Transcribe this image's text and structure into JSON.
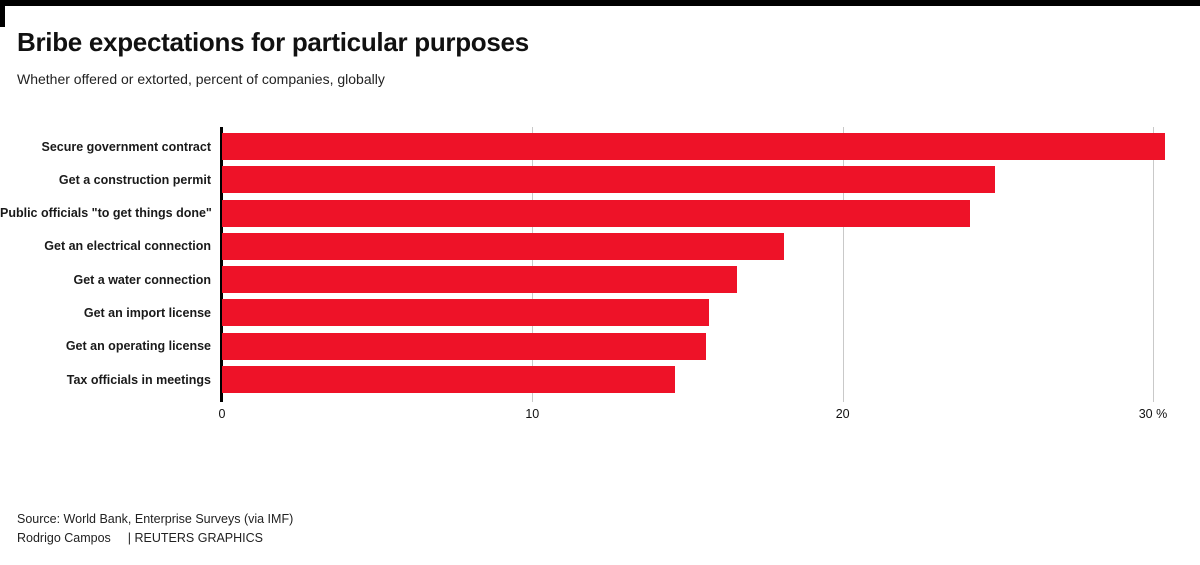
{
  "header": {
    "title": "Bribe expectations for particular purposes",
    "subtitle": "Whether offered or extorted, percent of companies, globally"
  },
  "chart_data": {
    "type": "bar",
    "orientation": "horizontal",
    "title": "Bribe expectations for particular purposes",
    "subtitle": "Whether offered or extorted, percent of companies, globally",
    "categories": [
      "Secure government contract",
      "Get a construction permit",
      "Public officials \"to get things done\"",
      "Get an electrical connection",
      "Get a water connection",
      "Get an import license",
      "Get an operating license",
      "Tax officials in meetings"
    ],
    "values": [
      30.4,
      24.9,
      24.1,
      18.1,
      16.6,
      15.7,
      15.6,
      14.6
    ],
    "unit": "percent of companies",
    "xlabel": "",
    "ylabel": "",
    "xlim": [
      0,
      31
    ],
    "xticks": [
      {
        "value": 0,
        "label": "0"
      },
      {
        "value": 10,
        "label": "10"
      },
      {
        "value": 20,
        "label": "20"
      },
      {
        "value": 30,
        "label": "30 %"
      }
    ],
    "grid": true,
    "legend": false,
    "bar_color": "#ee1228",
    "gridline_color": "#c9c9c9",
    "axis_color": "#000000"
  },
  "footer": {
    "source": "Source: World Bank, Enterprise Surveys (via IMF)",
    "author": "Rodrigo Campos",
    "brand": "| REUTERS GRAPHICS"
  }
}
